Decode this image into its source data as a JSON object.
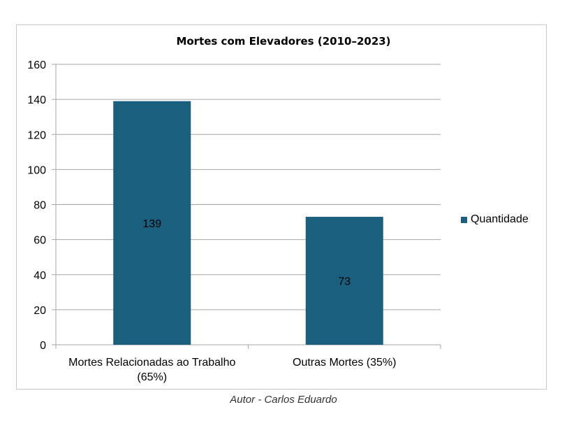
{
  "chart_data": {
    "type": "bar",
    "title": "Mortes com Elevadores (2010–2023)",
    "categories": [
      "Mortes Relacionadas ao Trabalho (65%)",
      "Outras Mortes (35%)"
    ],
    "category_lines": [
      [
        "Mortes Relacionadas ao Trabalho",
        "(65%)"
      ],
      [
        "Outras Mortes (35%)"
      ]
    ],
    "series": [
      {
        "name": "Quantidade",
        "values": [
          139,
          73
        ],
        "color": "#1a5f7e"
      }
    ],
    "data_labels": [
      "139",
      "73"
    ],
    "ylim": [
      0,
      160
    ],
    "yticks": [
      0,
      20,
      40,
      60,
      80,
      100,
      120,
      140,
      160
    ],
    "grid": true,
    "legend_position": "right"
  },
  "caption": "Autor - Carlos Eduardo"
}
